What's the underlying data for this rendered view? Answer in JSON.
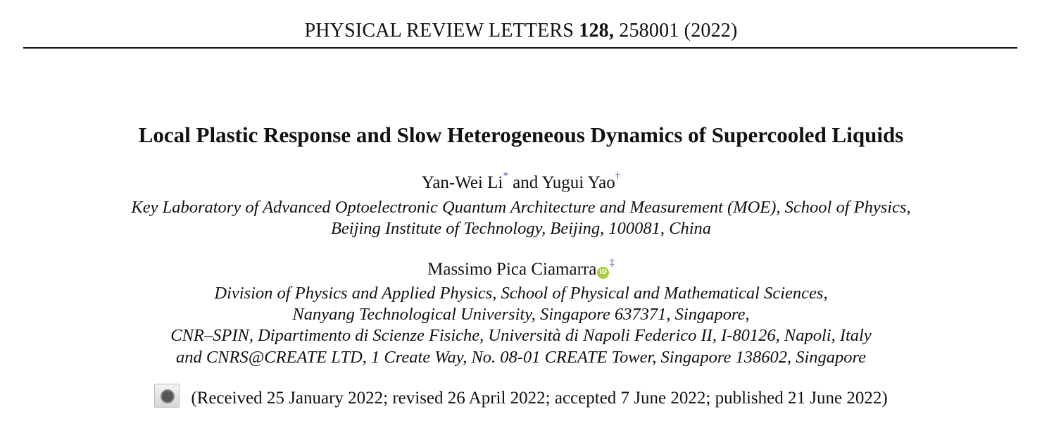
{
  "header": {
    "journal": "PHYSICAL REVIEW LETTERS",
    "volume": "128,",
    "article": "258001 (2022)"
  },
  "title": "Local Plastic Response and Slow Heterogeneous Dynamics of Supercooled Liquids",
  "authors_group1": {
    "author1": "Yan-Wei Li",
    "mark1": "*",
    "conj": " and ",
    "author2": "Yugui Yao",
    "mark2": "†"
  },
  "affiliation1": [
    "Key Laboratory of Advanced Optoelectronic Quantum Architecture and Measurement (MOE), School of Physics,",
    "Beijing Institute of Technology, Beijing, 100081, China"
  ],
  "authors_group2": {
    "author": "Massimo Pica Ciamarra",
    "orcid": "iD",
    "mark": "‡"
  },
  "affiliation2": [
    "Division of Physics and Applied Physics, School of Physical and Mathematical Sciences,",
    "Nanyang Technological University, Singapore 637371, Singapore,",
    "CNR–SPIN, Dipartimento di Scienze Fisiche, Università di Napoli Federico II, I-80126, Napoli, Italy",
    "and CNRS@CREATE LTD, 1 Create Way, No. 08-01 CREATE Tower, Singapore 138602, Singapore"
  ],
  "dates": "(Received 25 January 2022; revised 26 April 2022; accepted 7 June 2022; published 21 June 2022)",
  "icons": {
    "crossmark": "check-for-updates-icon",
    "orcid": "orcid-icon"
  }
}
